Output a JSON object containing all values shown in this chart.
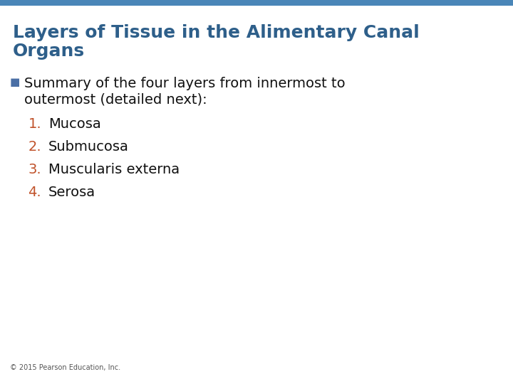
{
  "title_line1": "Layers of Tissue in the Alimentary Canal",
  "title_line2": "Organs",
  "title_color": "#2E5F8A",
  "title_fontsize": 18,
  "top_bar_color": "#4A86B8",
  "background_color": "#FFFFFF",
  "bullet_color": "#4A6FA5",
  "bullet_char": "■",
  "bullet_text_line1": "Summary of the four layers from innermost to",
  "bullet_text_line2": "outermost (detailed next):",
  "bullet_fontsize": 14,
  "bullet_text_color": "#111111",
  "list_items": [
    "Mucosa",
    "Submucosa",
    "Muscularis externa",
    "Serosa"
  ],
  "list_numbers": [
    "1.",
    "2.",
    "3.",
    "4."
  ],
  "list_number_color": "#C0522A",
  "list_text_color": "#111111",
  "list_fontsize": 14,
  "footer_text": "© 2015 Pearson Education, Inc.",
  "footer_fontsize": 7,
  "footer_color": "#555555"
}
